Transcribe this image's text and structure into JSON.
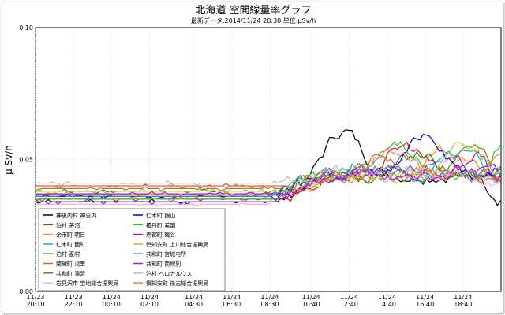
{
  "chart_data": {
    "type": "line",
    "title": "北海道 空間線量率グラフ",
    "subtitle": "最新データ:2014/11/24 20:30  単位:μSv/h",
    "ylabel": "μ Sv/h",
    "ylim": [
      0.0,
      0.1
    ],
    "yticks": [
      "0.00",
      "0.05",
      "0.10"
    ],
    "x_range_hours": [
      0,
      24.5
    ],
    "xticks": [
      {
        "date": "11/23",
        "time": "20:10",
        "h": 0
      },
      {
        "date": "11/23",
        "time": "22:10",
        "h": 2
      },
      {
        "date": "11/24",
        "time": "00:10",
        "h": 4
      },
      {
        "date": "11/24",
        "time": "02:10",
        "h": 6
      },
      {
        "date": "11/24",
        "time": "04:30",
        "h": 8.33
      },
      {
        "date": "11/24",
        "time": "06:30",
        "h": 10.33
      },
      {
        "date": "11/24",
        "time": "08:30",
        "h": 12.33
      },
      {
        "date": "11/24",
        "time": "10:40",
        "h": 14.5
      },
      {
        "date": "11/24",
        "time": "12:40",
        "h": 16.5
      },
      {
        "date": "11/24",
        "time": "14:40",
        "h": 18.5
      },
      {
        "date": "11/24",
        "time": "16:40",
        "h": 20.5
      },
      {
        "date": "11/24",
        "time": "18:40",
        "h": 22.5
      }
    ],
    "grid": true,
    "legend_position": "bottom-left",
    "series": [
      {
        "name": "神恵内村  神恵内",
        "color": "#000000",
        "base": 0.034,
        "peak": {
          "h": 16.2,
          "v": 0.061
        },
        "end": 0.036
      },
      {
        "name": "泊村  茅沼",
        "color": "#e0191e",
        "base": 0.035,
        "peak": {
          "h": 19.5,
          "v": 0.055
        },
        "end": 0.043
      },
      {
        "name": "余市町  朝日",
        "color": "#ff8c00",
        "base": 0.037,
        "peak": {
          "h": 21.5,
          "v": 0.054
        },
        "end": 0.042
      },
      {
        "name": "仁木町  西町",
        "color": "#00b8d4",
        "base": 0.036,
        "peak": {
          "h": 22.5,
          "v": 0.053
        },
        "end": 0.044
      },
      {
        "name": "泊村  盃村",
        "color": "#2e7d32",
        "base": 0.038,
        "peak": {
          "h": 20.2,
          "v": 0.052
        },
        "end": 0.046
      },
      {
        "name": "蘭越町  湯里",
        "color": "#d2691e",
        "base": 0.039,
        "peak": {
          "h": 18.0,
          "v": 0.05
        },
        "end": 0.045
      },
      {
        "name": "共和町  滝足",
        "color": "#7f7f00",
        "base": 0.04,
        "peak": {
          "h": 23.4,
          "v": 0.056
        },
        "end": 0.048
      },
      {
        "name": "岩見沢市  宝地総合振興局",
        "color": "#ffaad4",
        "base": 0.033,
        "peak": {
          "h": 17.5,
          "v": 0.045
        },
        "end": 0.04
      },
      {
        "name": "仁木町  銀山",
        "color": "#0000cc",
        "base": 0.036,
        "peak": {
          "h": 20.6,
          "v": 0.06
        },
        "end": 0.047
      },
      {
        "name": "積丹町  美国",
        "color": "#22c722",
        "base": 0.035,
        "peak": {
          "h": 19.0,
          "v": 0.057
        },
        "end": 0.055
      },
      {
        "name": "寿都町  磯谷",
        "color": "#cc00cc",
        "base": 0.037,
        "peak": {
          "h": 23.8,
          "v": 0.053
        },
        "end": 0.044
      },
      {
        "name": "倶知安町  上川総合振興局",
        "color": "#9acd32",
        "base": 0.038,
        "peak": {
          "h": 22.8,
          "v": 0.056
        },
        "end": 0.046
      },
      {
        "name": "共和町  宮城屯所",
        "color": "#4682b4",
        "base": 0.036,
        "peak": {
          "h": 17.3,
          "v": 0.049
        },
        "end": 0.043
      },
      {
        "name": "共和町  南幌別",
        "color": "#8a2be2",
        "base": 0.034,
        "peak": {
          "h": 21.8,
          "v": 0.051
        },
        "end": 0.045
      },
      {
        "name": "泊村  ヘロカルウス",
        "color": "#bdbdbd",
        "base": 0.041,
        "peak": {
          "h": 15.8,
          "v": 0.046
        },
        "end": 0.042
      },
      {
        "name": "倶知安町  後志総合振興局",
        "color": "#ff6f61",
        "base": 0.04,
        "peak": {
          "h": 18.8,
          "v": 0.053
        },
        "end": 0.05
      }
    ]
  }
}
